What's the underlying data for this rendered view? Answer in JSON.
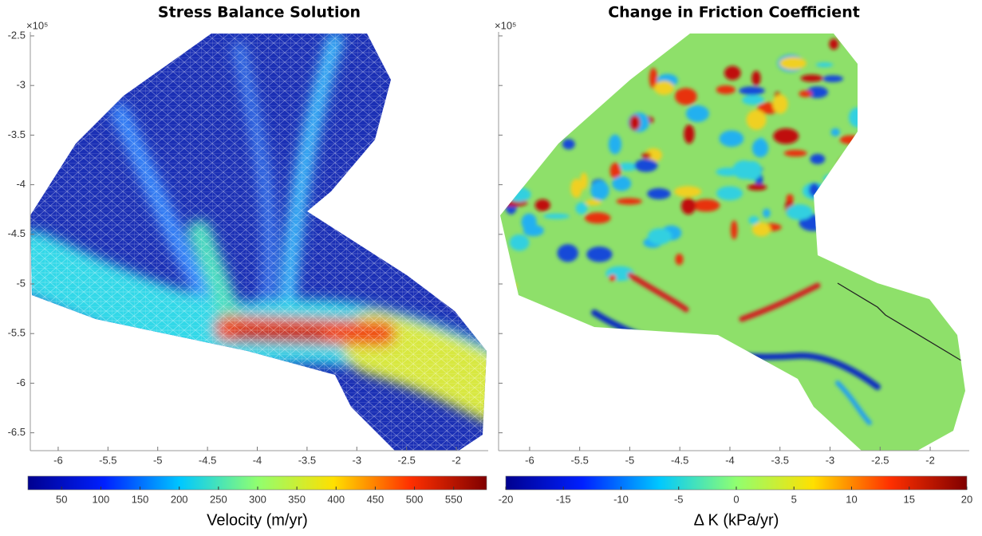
{
  "chart_data": [
    {
      "type": "heatmap",
      "title": "Stress Balance Solution",
      "xlim": [
        -6.28,
        -1.68
      ],
      "ylim": [
        -6.68,
        -2.46
      ],
      "xticks": [
        -6,
        -5.5,
        -5,
        -4.5,
        -4,
        -3.5,
        -3,
        -2.5,
        -2
      ],
      "yticks": [
        -6.5,
        -6,
        -5.5,
        -5,
        -4.5,
        -4,
        -3.5,
        -3,
        -2.5
      ],
      "ytick_labels": true,
      "axis_multiplier": "×10⁵",
      "colorbar": {
        "label": "Velocity (m/yr)",
        "lim": [
          7,
          592
        ],
        "ticks": [
          50,
          100,
          150,
          200,
          250,
          300,
          350,
          400,
          450,
          500,
          550
        ],
        "colormap": [
          "#00008f",
          "#0020ff",
          "#00c8ff",
          "#90ff70",
          "#ffe000",
          "#ff3000",
          "#800000"
        ]
      }
    },
    {
      "type": "heatmap",
      "title": "Change in Friction Coefficient",
      "xlim": [
        -6.31,
        -1.61
      ],
      "ylim": [
        -6.68,
        -2.46
      ],
      "xticks": [
        -6,
        -5.5,
        -5,
        -4.5,
        -4,
        -3.5,
        -3,
        -2.5,
        -2
      ],
      "yticks": [
        -6.5,
        -6,
        -5.5,
        -5,
        -4.5,
        -4,
        -3.5,
        -3,
        -2.5
      ],
      "ytick_labels": false,
      "axis_multiplier": "×10⁵",
      "colorbar": {
        "label": "Δ K (kPa/yr)",
        "lim": [
          -20,
          20
        ],
        "ticks": [
          -20,
          -15,
          -10,
          -5,
          0,
          5,
          10,
          15,
          20
        ],
        "colormap": [
          "#00008f",
          "#0020ff",
          "#00c8ff",
          "#90ff70",
          "#ffe000",
          "#ff3000",
          "#800000"
        ]
      }
    }
  ]
}
